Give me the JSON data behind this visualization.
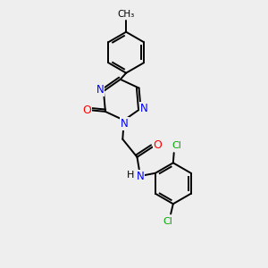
{
  "bg_color": "#eeeeee",
  "bond_color": "#000000",
  "N_color": "#0000ff",
  "O_color": "#ff0000",
  "Cl_color": "#00aa00",
  "line_width": 1.4,
  "figsize": [
    3.0,
    3.0
  ],
  "dpi": 100,
  "xlim": [
    0,
    10
  ],
  "ylim": [
    0,
    10
  ]
}
